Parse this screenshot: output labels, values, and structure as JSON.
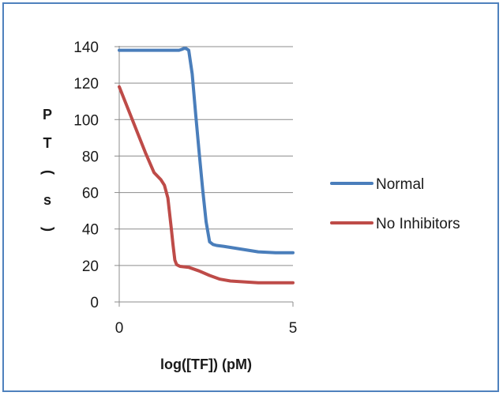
{
  "colors": {
    "frame": "#4f81bd",
    "grid": "#8c8c8c",
    "text": "#1a1a1a"
  },
  "chart_data": {
    "type": "line",
    "title": "",
    "xlabel": "log([TF]) (pM)",
    "ylabel": "PT (s)",
    "xlim": [
      0,
      5
    ],
    "ylim": [
      0,
      140
    ],
    "xticks": [
      0,
      5
    ],
    "yticks": [
      0,
      20,
      40,
      60,
      80,
      100,
      120,
      140
    ],
    "grid": "horizontal",
    "legend_position": "right",
    "series": [
      {
        "name": "Normal",
        "color": "#4a7ebb",
        "x": [
          0,
          0.5,
          1.0,
          1.5,
          1.72,
          1.8,
          1.86,
          1.92,
          2.0,
          2.1,
          2.2,
          2.3,
          2.4,
          2.5,
          2.6,
          2.7,
          2.8,
          3.0,
          3.5,
          4.0,
          4.5,
          5.0
        ],
        "y": [
          138,
          138,
          138,
          138,
          138,
          138.5,
          139,
          139,
          138,
          125,
          103,
          82,
          62,
          44,
          33,
          31.5,
          31,
          30.5,
          29,
          27.5,
          27,
          27
        ]
      },
      {
        "name": "No Inhibitors",
        "color": "#be4b48",
        "x": [
          0,
          0.25,
          0.5,
          0.75,
          1.0,
          1.2,
          1.3,
          1.4,
          1.5,
          1.55,
          1.6,
          1.65,
          1.7,
          1.75,
          2.0,
          2.3,
          2.6,
          2.9,
          3.2,
          3.6,
          4.0,
          4.5,
          5.0
        ],
        "y": [
          118,
          106,
          94,
          82,
          71,
          67,
          64,
          57,
          40,
          31,
          23,
          20.5,
          20,
          19.5,
          19,
          17,
          14.5,
          12.5,
          11.5,
          11,
          10.5,
          10.5,
          10.5
        ]
      }
    ]
  }
}
